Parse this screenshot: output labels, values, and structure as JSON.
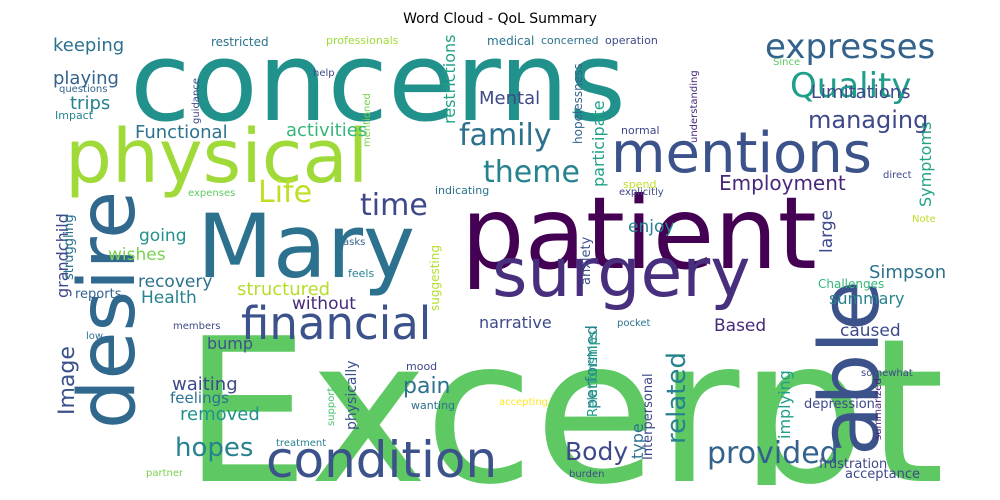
{
  "chart_data": {
    "type": "wordcloud",
    "title": "Word Cloud - QoL Summary",
    "palette": "viridis",
    "words": [
      {
        "text": "Excerpt",
        "weight": 1.0,
        "color": "#5ec962"
      },
      {
        "text": "concerns",
        "weight": 0.78,
        "color": "#21918c"
      },
      {
        "text": "patient",
        "weight": 0.72,
        "color": "#440154"
      },
      {
        "text": "Mary",
        "weight": 0.62,
        "color": "#2c728e"
      },
      {
        "text": "able",
        "weight": 0.58,
        "color": "#3b528b"
      },
      {
        "text": "desire",
        "weight": 0.55,
        "color": "#31688e"
      },
      {
        "text": "physical",
        "weight": 0.52,
        "color": "#a0da39"
      },
      {
        "text": "surgery",
        "weight": 0.48,
        "color": "#472f7d"
      },
      {
        "text": "mentions",
        "weight": 0.4,
        "color": "#3b528b"
      },
      {
        "text": "condition",
        "weight": 0.36,
        "color": "#3b528b"
      },
      {
        "text": "financial",
        "weight": 0.32,
        "color": "#3b528b"
      },
      {
        "text": "expresses",
        "weight": 0.24,
        "color": "#33638d"
      },
      {
        "text": "Quality",
        "weight": 0.24,
        "color": "#1f9e89"
      },
      {
        "text": "family",
        "weight": 0.22,
        "color": "#2c728e"
      },
      {
        "text": "Life",
        "weight": 0.2,
        "color": "#bddf26"
      },
      {
        "text": "theme",
        "weight": 0.2,
        "color": "#26828e"
      },
      {
        "text": "time",
        "weight": 0.2,
        "color": "#3e4989"
      },
      {
        "text": "provided",
        "weight": 0.2,
        "color": "#33638d"
      },
      {
        "text": "hopes",
        "weight": 0.18,
        "color": "#26828e"
      },
      {
        "text": "related",
        "weight": 0.18,
        "color": "#26828e"
      },
      {
        "text": "Body",
        "weight": 0.16,
        "color": "#3e4989"
      },
      {
        "text": "managing",
        "weight": 0.15,
        "color": "#3e4989"
      },
      {
        "text": "Employment",
        "weight": 0.14,
        "color": "#482878"
      },
      {
        "text": "Image",
        "weight": 0.14,
        "color": "#3b528b"
      },
      {
        "text": "pain",
        "weight": 0.14,
        "color": "#2c728e"
      },
      {
        "text": "Limitations",
        "weight": 0.12,
        "color": "#3e4989"
      },
      {
        "text": "Mental",
        "weight": 0.12,
        "color": "#3e4989"
      },
      {
        "text": "keeping",
        "weight": 0.11,
        "color": "#2c728e"
      },
      {
        "text": "playing",
        "weight": 0.11,
        "color": "#33638d"
      },
      {
        "text": "trips",
        "weight": 0.11,
        "color": "#26828e"
      },
      {
        "text": "Functional",
        "weight": 0.11,
        "color": "#2c728e"
      },
      {
        "text": "activities",
        "weight": 0.11,
        "color": "#35b779"
      },
      {
        "text": "structured",
        "weight": 0.11,
        "color": "#b5de2b"
      },
      {
        "text": "Simpson",
        "weight": 0.11,
        "color": "#2c728e"
      },
      {
        "text": "waiting",
        "weight": 0.11,
        "color": "#3e4989"
      },
      {
        "text": "removed",
        "weight": 0.11,
        "color": "#21918c"
      },
      {
        "text": "narrative",
        "weight": 0.1,
        "color": "#3e4989"
      },
      {
        "text": "recovery",
        "weight": 0.1,
        "color": "#2c728e"
      },
      {
        "text": "Health",
        "weight": 0.1,
        "color": "#26828e"
      },
      {
        "text": "wishes",
        "weight": 0.1,
        "color": "#7ad151"
      },
      {
        "text": "going",
        "weight": 0.1,
        "color": "#21918c"
      },
      {
        "text": "enjoy",
        "weight": 0.1,
        "color": "#26828e"
      },
      {
        "text": "without",
        "weight": 0.1,
        "color": "#482878"
      },
      {
        "text": "caused",
        "weight": 0.1,
        "color": "#3e4989"
      },
      {
        "text": "summary",
        "weight": 0.09,
        "color": "#26828e"
      },
      {
        "text": "Based",
        "weight": 0.09,
        "color": "#482878"
      },
      {
        "text": "bump",
        "weight": 0.09,
        "color": "#3b528b"
      },
      {
        "text": "feelings",
        "weight": 0.08,
        "color": "#2c728e"
      },
      {
        "text": "large",
        "weight": 0.09,
        "color": "#3e4989"
      },
      {
        "text": "grandchild",
        "weight": 0.09,
        "color": "#3e4989"
      },
      {
        "text": "restrictions",
        "weight": 0.09,
        "color": "#20a386"
      },
      {
        "text": "participate",
        "weight": 0.09,
        "color": "#1fa188"
      },
      {
        "text": "Symptoms",
        "weight": 0.09,
        "color": "#20a386"
      },
      {
        "text": "performed",
        "weight": 0.09,
        "color": "#26828e"
      },
      {
        "text": "type",
        "weight": 0.09,
        "color": "#2c728e"
      },
      {
        "text": "implying",
        "weight": 0.09,
        "color": "#1f9e89"
      },
      {
        "text": "physically",
        "weight": 0.08,
        "color": "#3b528b"
      },
      {
        "text": "Challenges",
        "weight": 0.07,
        "color": "#35b779"
      },
      {
        "text": "struggling",
        "weight": 0.07,
        "color": "#2c728e"
      },
      {
        "text": "reports",
        "weight": 0.07,
        "color": "#33638d"
      },
      {
        "text": "Interpersonal",
        "weight": 0.07,
        "color": "#3e4989"
      },
      {
        "text": "Relationships",
        "weight": 0.07,
        "color": "#1f9e89"
      },
      {
        "text": "hopelessness",
        "weight": 0.06,
        "color": "#33638d"
      },
      {
        "text": "depression",
        "weight": 0.06,
        "color": "#3e4989"
      },
      {
        "text": "frustration",
        "weight": 0.06,
        "color": "#3e4989"
      },
      {
        "text": "acceptance",
        "weight": 0.06,
        "color": "#3e4989"
      },
      {
        "text": "anxiety",
        "weight": 0.06,
        "color": "#3b528b"
      },
      {
        "text": "suggesting",
        "weight": 0.06,
        "color": "#b5de2b"
      },
      {
        "text": "restricted",
        "weight": 0.06,
        "color": "#2c728e"
      },
      {
        "text": "professionals",
        "weight": 0.05,
        "color": "#a0da39"
      },
      {
        "text": "medical",
        "weight": 0.06,
        "color": "#2c728e"
      },
      {
        "text": "concerned",
        "weight": 0.05,
        "color": "#2c728e"
      },
      {
        "text": "operation",
        "weight": 0.05,
        "color": "#3e4989"
      },
      {
        "text": "questions",
        "weight": 0.05,
        "color": "#33638d"
      },
      {
        "text": "guidance",
        "weight": 0.05,
        "color": "#3e4989"
      },
      {
        "text": "mentioned",
        "weight": 0.05,
        "color": "#7ad151"
      },
      {
        "text": "help",
        "weight": 0.05,
        "color": "#3e4989"
      },
      {
        "text": "understanding",
        "weight": 0.05,
        "color": "#482878"
      },
      {
        "text": "Since",
        "weight": 0.05,
        "color": "#5ec962"
      },
      {
        "text": "Impact",
        "weight": 0.05,
        "color": "#26828e"
      },
      {
        "text": "normal",
        "weight": 0.05,
        "color": "#3e4989"
      },
      {
        "text": "spend",
        "weight": 0.05,
        "color": "#bddf26"
      },
      {
        "text": "explicitly",
        "weight": 0.05,
        "color": "#3e4989"
      },
      {
        "text": "indicating",
        "weight": 0.05,
        "color": "#2c728e"
      },
      {
        "text": "expenses",
        "weight": 0.05,
        "color": "#5ec962"
      },
      {
        "text": "direct",
        "weight": 0.05,
        "color": "#3e4989"
      },
      {
        "text": "Note",
        "weight": 0.05,
        "color": "#bddf26"
      },
      {
        "text": "asks",
        "weight": 0.05,
        "color": "#33638d"
      },
      {
        "text": "feels",
        "weight": 0.05,
        "color": "#26828e"
      },
      {
        "text": "members",
        "weight": 0.05,
        "color": "#3e4989"
      },
      {
        "text": "low",
        "weight": 0.05,
        "color": "#2c728e"
      },
      {
        "text": "pocket",
        "weight": 0.05,
        "color": "#2c728e"
      },
      {
        "text": "mood",
        "weight": 0.05,
        "color": "#3e4989"
      },
      {
        "text": "wanting",
        "weight": 0.05,
        "color": "#2c728e"
      },
      {
        "text": "accepting",
        "weight": 0.05,
        "color": "#fde725"
      },
      {
        "text": "support",
        "weight": 0.05,
        "color": "#4ac16d"
      },
      {
        "text": "somewhat",
        "weight": 0.05,
        "color": "#3e4989"
      },
      {
        "text": "summarized",
        "weight": 0.05,
        "color": "#482878"
      },
      {
        "text": "treatment",
        "weight": 0.05,
        "color": "#26828e"
      },
      {
        "text": "burden",
        "weight": 0.05,
        "color": "#3e4989"
      },
      {
        "text": "partner",
        "weight": 0.05,
        "color": "#7ad151"
      }
    ]
  }
}
